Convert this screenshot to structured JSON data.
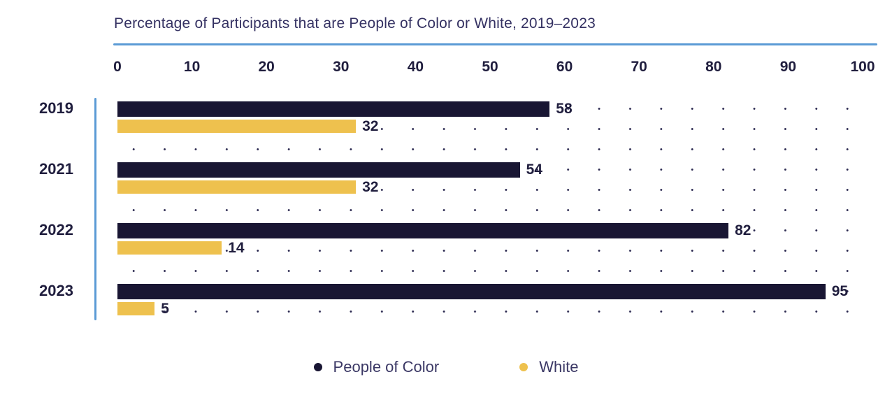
{
  "chart_data": {
    "type": "bar",
    "orientation": "horizontal",
    "title": "Percentage of Participants that are People of Color or White, 2019–2023",
    "categories": [
      "2019",
      "2021",
      "2022",
      "2023"
    ],
    "series": [
      {
        "name": "People of Color",
        "color": "#191633",
        "values": [
          58,
          54,
          82,
          95
        ]
      },
      {
        "name": "White",
        "color": "#eec14e",
        "values": [
          32,
          32,
          14,
          5
        ]
      }
    ],
    "x_ticks": [
      "0",
      "10",
      "20",
      "30",
      "40",
      "50",
      "60",
      "70",
      "80",
      "90",
      "100"
    ],
    "xlim": [
      0,
      100
    ],
    "grid": "dotted",
    "legend_position": "bottom"
  },
  "colors": {
    "accent_line": "#5b9bd5",
    "title_text": "#343162",
    "tick_text": "#201e3e",
    "legend_text": "#3b3865",
    "dot_grid": "#2b2950",
    "background": "#ffffff"
  }
}
